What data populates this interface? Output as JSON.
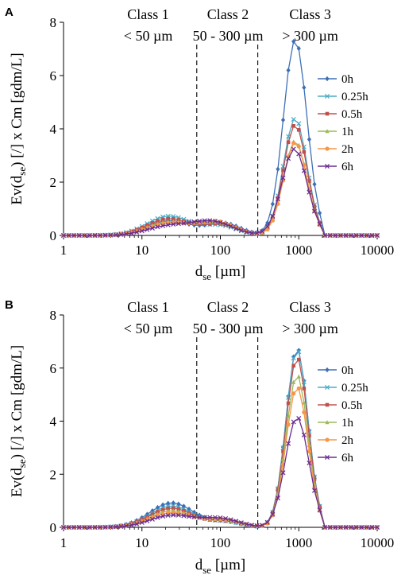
{
  "chart_data": [
    {
      "panel_label": "A",
      "type": "line",
      "xscale": "log",
      "xlim": [
        1,
        10000
      ],
      "ylim": [
        0,
        8
      ],
      "xticks": [
        1,
        10,
        100,
        1000,
        10000
      ],
      "xtick_labels": [
        "1",
        "10",
        "100",
        "1000",
        "10000"
      ],
      "yticks": [
        0,
        2,
        4,
        6,
        8
      ],
      "ytick_labels": [
        "0",
        "2",
        "4",
        "6",
        "8"
      ],
      "xlabel_main": "d",
      "xlabel_sub": "se",
      "xlabel_unit": " [µm]",
      "ylabel_main": "Ev(d",
      "ylabel_sub": "se",
      "ylabel_rest": ") [/] x Cm [gdm/L]",
      "class_dividers": [
        50,
        300
      ],
      "classes": [
        {
          "name": "Class 1",
          "range": "< 50 µm"
        },
        {
          "name": "Class 2",
          "range": "50 - 300 µm"
        },
        {
          "name": "Class 3",
          "range": "> 300 µm"
        }
      ],
      "legend_position": "right",
      "series": [
        {
          "name": "0h",
          "color": "#3d6fb6",
          "marker": "diamond",
          "small": {
            "amp": 0.55,
            "center": 22,
            "width": 0.28
          },
          "mid": {
            "amp": 0.45,
            "center": 110,
            "width": 0.22
          },
          "large": {
            "amp": 7.35,
            "center": 900,
            "width": 0.15
          }
        },
        {
          "name": "0.25h",
          "color": "#4bacc6",
          "marker": "x",
          "small": {
            "amp": 0.72,
            "center": 22,
            "width": 0.28
          },
          "mid": {
            "amp": 0.35,
            "center": 100,
            "width": 0.22
          },
          "large": {
            "amp": 4.4,
            "center": 900,
            "width": 0.15
          }
        },
        {
          "name": "0.5h",
          "color": "#c0504d",
          "marker": "square",
          "small": {
            "amp": 0.62,
            "center": 22,
            "width": 0.28
          },
          "mid": {
            "amp": 0.4,
            "center": 100,
            "width": 0.22
          },
          "large": {
            "amp": 4.15,
            "center": 900,
            "width": 0.15
          }
        },
        {
          "name": "1h",
          "color": "#9bbb59",
          "marker": "triangle",
          "small": {
            "amp": 0.5,
            "center": 22,
            "width": 0.28
          },
          "mid": {
            "amp": 0.45,
            "center": 90,
            "width": 0.24
          },
          "large": {
            "amp": 3.55,
            "center": 900,
            "width": 0.15
          }
        },
        {
          "name": "2h",
          "color": "#f79646",
          "marker": "circle",
          "small": {
            "amp": 0.45,
            "center": 22,
            "width": 0.28
          },
          "mid": {
            "amp": 0.5,
            "center": 90,
            "width": 0.24
          },
          "large": {
            "amp": 3.5,
            "center": 900,
            "width": 0.15
          }
        },
        {
          "name": "6h",
          "color": "#6a2c91",
          "marker": "x",
          "small": {
            "amp": 0.35,
            "center": 22,
            "width": 0.28
          },
          "mid": {
            "amp": 0.5,
            "center": 80,
            "width": 0.26
          },
          "large": {
            "amp": 3.25,
            "center": 880,
            "width": 0.16
          }
        }
      ]
    },
    {
      "panel_label": "B",
      "type": "line",
      "xscale": "log",
      "xlim": [
        1,
        10000
      ],
      "ylim": [
        0,
        8
      ],
      "xticks": [
        1,
        10,
        100,
        1000,
        10000
      ],
      "xtick_labels": [
        "1",
        "10",
        "100",
        "1000",
        "10000"
      ],
      "yticks": [
        0,
        2,
        4,
        6,
        8
      ],
      "ytick_labels": [
        "0",
        "2",
        "4",
        "6",
        "8"
      ],
      "xlabel_main": "d",
      "xlabel_sub": "se",
      "xlabel_unit": " [µm]",
      "ylabel_main": "Ev(d",
      "ylabel_sub": "se",
      "ylabel_rest": ") [/] x Cm [gdm/L]",
      "class_dividers": [
        50,
        300
      ],
      "classes": [
        {
          "name": "Class 1",
          "range": "< 50 µm"
        },
        {
          "name": "Class 2",
          "range": "50 - 300 µm"
        },
        {
          "name": "Class 3",
          "range": "> 300 µm"
        }
      ],
      "legend_position": "right",
      "series": [
        {
          "name": "0h",
          "color": "#3d6fb6",
          "marker": "diamond",
          "small": {
            "amp": 0.92,
            "center": 24,
            "width": 0.28
          },
          "mid": {
            "amp": 0.2,
            "center": 120,
            "width": 0.2
          },
          "large": {
            "amp": 6.75,
            "center": 950,
            "width": 0.14
          }
        },
        {
          "name": "0.25h",
          "color": "#4bacc6",
          "marker": "x",
          "small": {
            "amp": 0.8,
            "center": 24,
            "width": 0.28
          },
          "mid": {
            "amp": 0.2,
            "center": 120,
            "width": 0.2
          },
          "large": {
            "amp": 6.7,
            "center": 950,
            "width": 0.14
          }
        },
        {
          "name": "0.5h",
          "color": "#c0504d",
          "marker": "square",
          "small": {
            "amp": 0.72,
            "center": 24,
            "width": 0.28
          },
          "mid": {
            "amp": 0.22,
            "center": 120,
            "width": 0.2
          },
          "large": {
            "amp": 6.4,
            "center": 950,
            "width": 0.14
          }
        },
        {
          "name": "1h",
          "color": "#9bbb59",
          "marker": "triangle",
          "small": {
            "amp": 0.62,
            "center": 24,
            "width": 0.28
          },
          "mid": {
            "amp": 0.25,
            "center": 110,
            "width": 0.22
          },
          "large": {
            "amp": 5.75,
            "center": 950,
            "width": 0.14
          }
        },
        {
          "name": "2h",
          "color": "#f79646",
          "marker": "circle",
          "small": {
            "amp": 0.55,
            "center": 24,
            "width": 0.28
          },
          "mid": {
            "amp": 0.28,
            "center": 110,
            "width": 0.22
          },
          "large": {
            "amp": 5.3,
            "center": 950,
            "width": 0.14
          }
        },
        {
          "name": "6h",
          "color": "#6a2c91",
          "marker": "x",
          "small": {
            "amp": 0.45,
            "center": 24,
            "width": 0.28
          },
          "mid": {
            "amp": 0.32,
            "center": 100,
            "width": 0.24
          },
          "large": {
            "amp": 4.15,
            "center": 950,
            "width": 0.15
          }
        }
      ]
    }
  ]
}
